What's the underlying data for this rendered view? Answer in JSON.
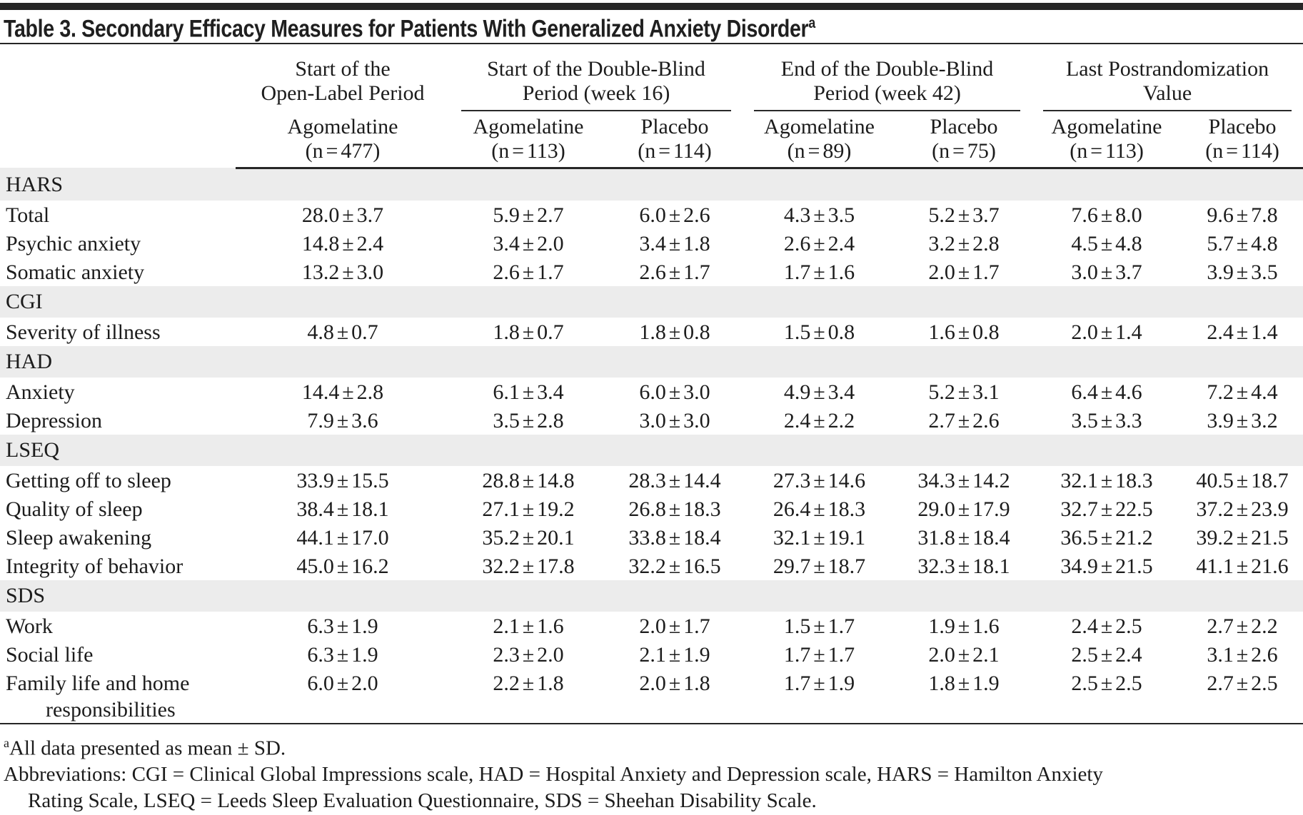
{
  "page": {
    "title": "Table 3. Secondary Efficacy Measures for Patients With Generalized Anxiety Disorder",
    "title_sup": "a"
  },
  "colors": {
    "section_band": "#ececec",
    "rule": "#262626"
  },
  "table": {
    "col_groups": [
      {
        "label": "Start of the\nOpen-Label Period",
        "span": 1,
        "underline": false
      },
      {
        "label": "Start of the Double-Blind\nPeriod (week 16)",
        "span": 2,
        "underline": true
      },
      {
        "label": "End of the Double-Blind\nPeriod (week 42)",
        "span": 2,
        "underline": true
      },
      {
        "label": "Last Postrandomization\nValue",
        "span": 2,
        "underline": true
      }
    ],
    "sub_columns": [
      {
        "label": "Agomelatine\n(n = 477)"
      },
      {
        "label": "Agomelatine\n(n = 113)"
      },
      {
        "label": "Placebo\n(n = 114)"
      },
      {
        "label": "Agomelatine\n(n = 89)"
      },
      {
        "label": "Placebo\n(n = 75)"
      },
      {
        "label": "Agomelatine\n(n = 113)"
      },
      {
        "label": "Placebo\n(n = 114)"
      }
    ],
    "sections": [
      {
        "name": "HARS",
        "rows": [
          {
            "label": "Total",
            "values": [
              "28.0 ± 3.7",
              "5.9 ± 2.7",
              "6.0 ± 2.6",
              "4.3 ± 3.5",
              "5.2 ± 3.7",
              "7.6 ± 8.0",
              "9.6 ± 7.8"
            ]
          },
          {
            "label": "Psychic anxiety",
            "values": [
              "14.8 ± 2.4",
              "3.4 ± 2.0",
              "3.4 ± 1.8",
              "2.6 ± 2.4",
              "3.2 ± 2.8",
              "4.5 ± 4.8",
              "5.7 ± 4.8"
            ]
          },
          {
            "label": "Somatic anxiety",
            "values": [
              "13.2 ± 3.0",
              "2.6 ± 1.7",
              "2.6 ± 1.7",
              "1.7 ± 1.6",
              "2.0 ± 1.7",
              "3.0 ± 3.7",
              "3.9 ± 3.5"
            ]
          }
        ]
      },
      {
        "name": "CGI",
        "rows": [
          {
            "label": "Severity of illness",
            "values": [
              "4.8 ± 0.7",
              "1.8 ± 0.7",
              "1.8 ± 0.8",
              "1.5 ± 0.8",
              "1.6 ± 0.8",
              "2.0 ± 1.4",
              "2.4 ± 1.4"
            ]
          }
        ]
      },
      {
        "name": "HAD",
        "rows": [
          {
            "label": "Anxiety",
            "values": [
              "14.4 ± 2.8",
              "6.1 ± 3.4",
              "6.0 ± 3.0",
              "4.9 ± 3.4",
              "5.2 ± 3.1",
              "6.4 ± 4.6",
              "7.2 ± 4.4"
            ]
          },
          {
            "label": "Depression",
            "values": [
              "7.9 ± 3.6",
              "3.5 ± 2.8",
              "3.0 ± 3.0",
              "2.4 ± 2.2",
              "2.7 ± 2.6",
              "3.5 ± 3.3",
              "3.9 ± 3.2"
            ]
          }
        ]
      },
      {
        "name": "LSEQ",
        "rows": [
          {
            "label": "Getting off to sleep",
            "values": [
              "33.9 ± 15.5",
              "28.8 ± 14.8",
              "28.3 ± 14.4",
              "27.3 ± 14.6",
              "34.3 ± 14.2",
              "32.1 ± 18.3",
              "40.5 ± 18.7"
            ]
          },
          {
            "label": "Quality of sleep",
            "values": [
              "38.4 ± 18.1",
              "27.1 ± 19.2",
              "26.8 ± 18.3",
              "26.4 ± 18.3",
              "29.0 ± 17.9",
              "32.7 ± 22.5",
              "37.2 ± 23.9"
            ]
          },
          {
            "label": "Sleep awakening",
            "values": [
              "44.1 ± 17.0",
              "35.2 ± 20.1",
              "33.8 ± 18.4",
              "32.1 ± 19.1",
              "31.8 ± 18.4",
              "36.5 ± 21.2",
              "39.2 ± 21.5"
            ]
          },
          {
            "label": "Integrity of behavior",
            "values": [
              "45.0 ± 16.2",
              "32.2 ± 17.8",
              "32.2 ± 16.5",
              "29.7 ± 18.7",
              "32.3 ± 18.1",
              "34.9 ± 21.5",
              "41.1 ± 21.6"
            ]
          }
        ]
      },
      {
        "name": "SDS",
        "rows": [
          {
            "label": "Work",
            "values": [
              "6.3 ± 1.9",
              "2.1 ± 1.6",
              "2.0 ± 1.7",
              "1.5 ± 1.7",
              "1.9 ± 1.6",
              "2.4 ± 2.5",
              "2.7 ± 2.2"
            ]
          },
          {
            "label": "Social life",
            "values": [
              "6.3 ± 1.9",
              "2.3 ± 2.0",
              "2.1 ± 1.9",
              "1.7 ± 1.7",
              "2.0 ± 2.1",
              "2.5 ± 2.4",
              "3.1 ± 2.6"
            ]
          },
          {
            "label": "Family life and home responsibilities",
            "values": [
              "6.0 ± 2.0",
              "2.2 ± 1.8",
              "2.0 ± 1.8",
              "1.7 ± 1.9",
              "1.8 ± 1.9",
              "2.5 ± 2.5",
              "2.7 ± 2.5"
            ]
          }
        ]
      }
    ]
  },
  "footnotes": {
    "marker": "a",
    "note": "All data presented as mean ± SD.",
    "abbreviations": "Abbreviations: CGI = Clinical Global Impressions scale, HAD = Hospital Anxiety and Depression scale, HARS = Hamilton Anxiety Rating Scale, LSEQ = Leeds Sleep Evaluation Questionnaire, SDS = Sheehan Disability Scale."
  }
}
